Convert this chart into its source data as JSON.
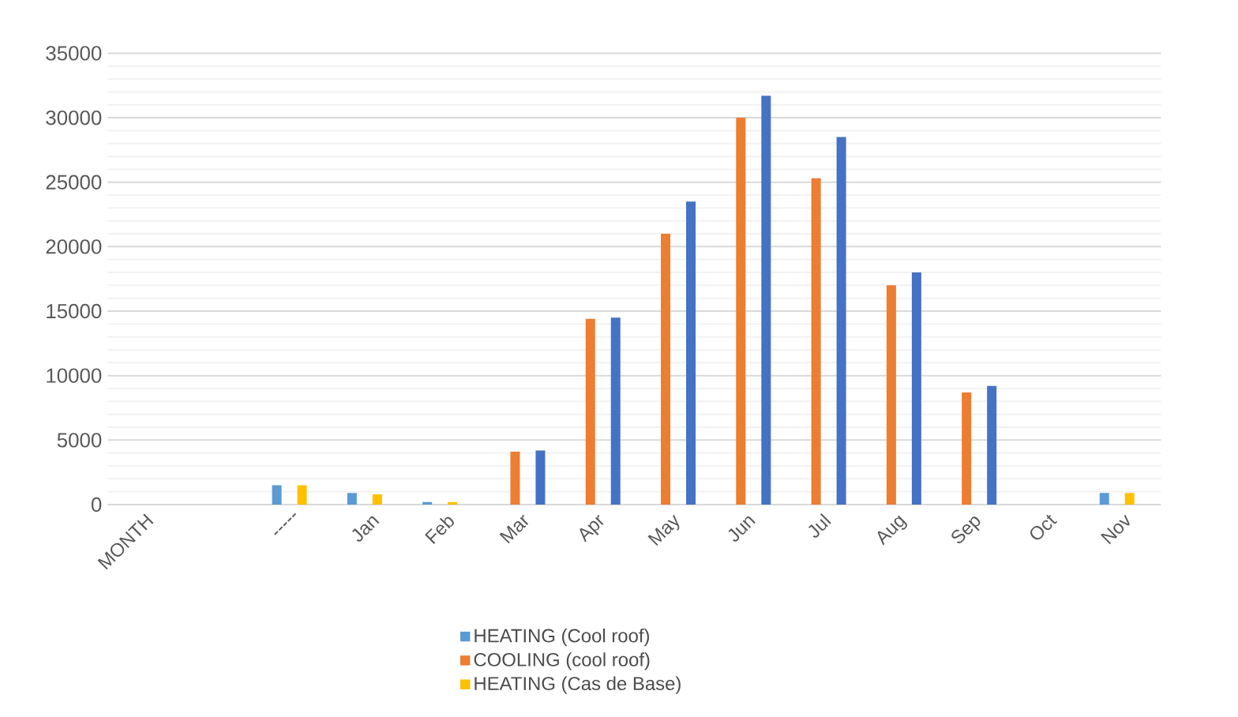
{
  "chart_data": {
    "type": "bar",
    "categories": [
      "MONTH",
      null,
      "-----",
      "Jan",
      "Feb",
      "Mar",
      "Apr",
      "May",
      "Jun",
      "Jul",
      "Aug",
      "Sep",
      "Oct",
      "Nov"
    ],
    "series": [
      {
        "name": "HEATING (Cool roof)",
        "color": "#5b9bd5",
        "values": [
          null,
          null,
          1500,
          900,
          200,
          null,
          null,
          null,
          null,
          null,
          null,
          null,
          null,
          900
        ]
      },
      {
        "name": "COOLING (cool roof)",
        "color": "#ed7d31",
        "values": [
          null,
          null,
          null,
          null,
          null,
          4100,
          14400,
          21000,
          30000,
          25300,
          17000,
          8700,
          null,
          null
        ]
      },
      {
        "name": "HEATING (Cas de Base)",
        "color": "#ffc000",
        "values": [
          null,
          null,
          1500,
          800,
          200,
          null,
          null,
          null,
          null,
          null,
          null,
          null,
          null,
          900
        ]
      },
      {
        "color": "#4472c4",
        "values": [
          null,
          null,
          null,
          null,
          null,
          4200,
          14500,
          23500,
          31700,
          28500,
          18000,
          9200,
          null,
          null
        ]
      }
    ],
    "ylim": [
      0,
      35000
    ],
    "yticks": [
      0,
      5000,
      10000,
      15000,
      20000,
      25000,
      30000,
      35000
    ],
    "grid": "y",
    "legend": "bottom"
  }
}
